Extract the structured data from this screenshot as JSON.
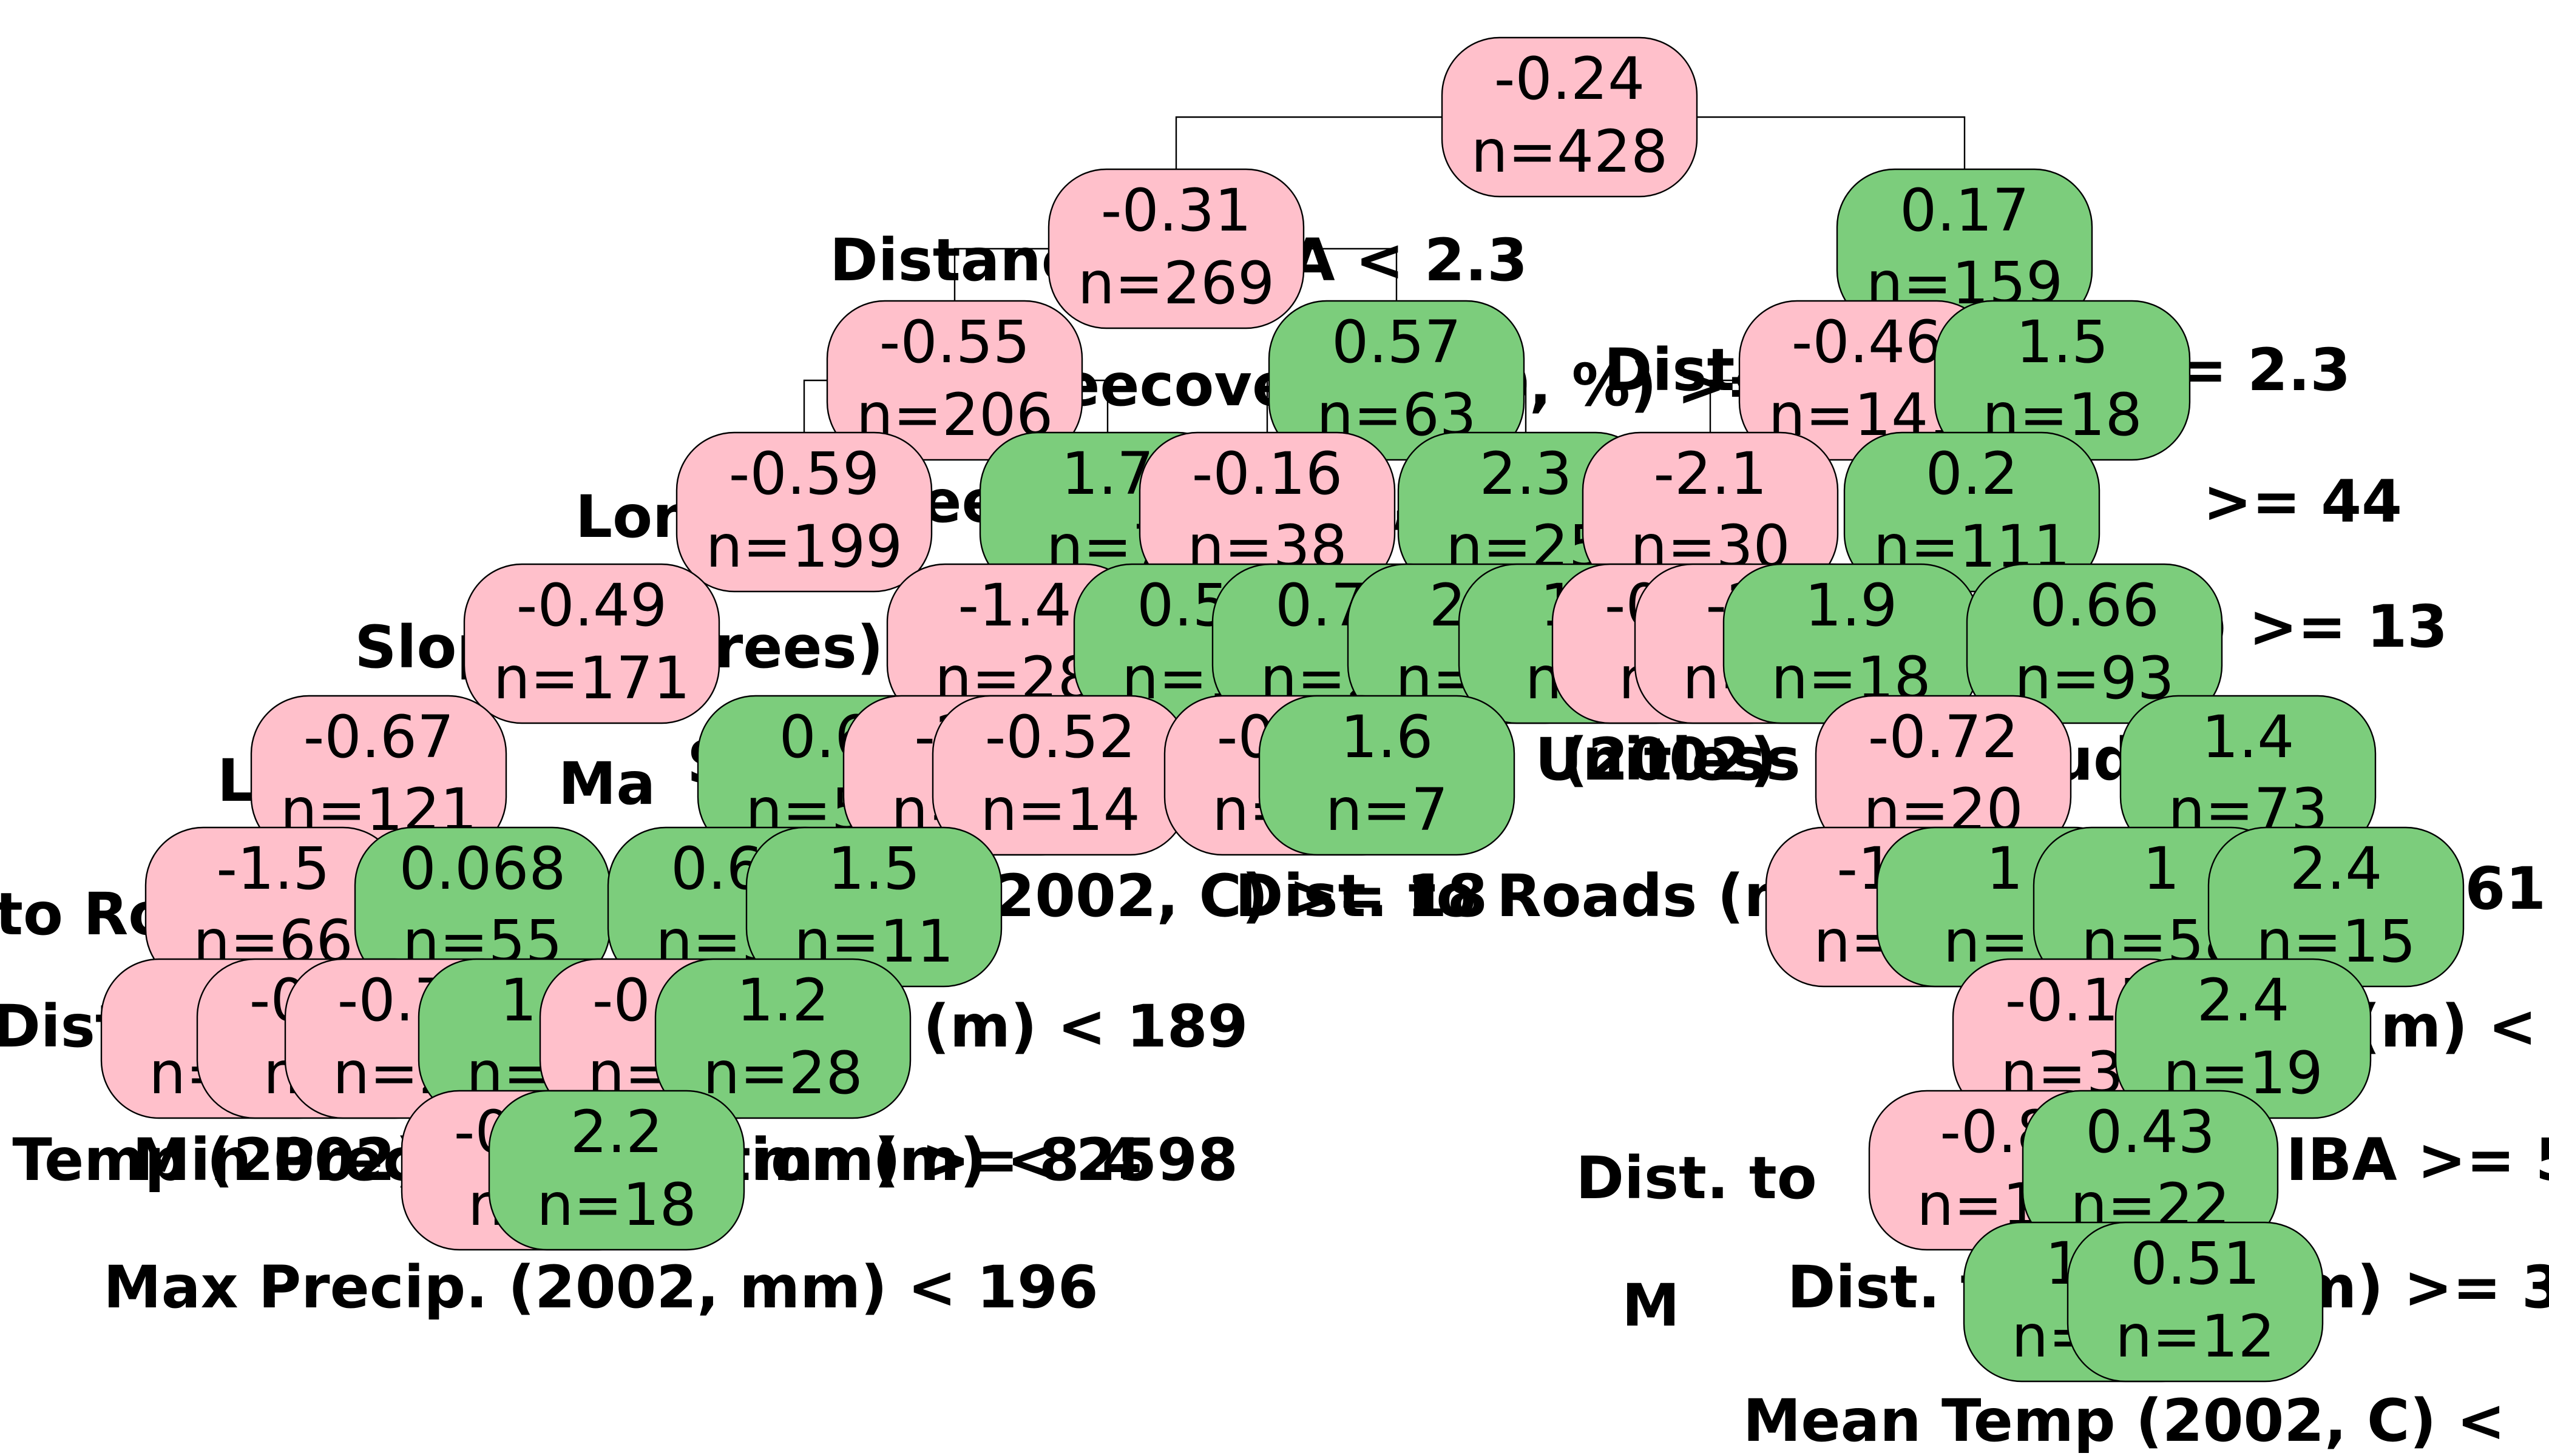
{
  "colors": {
    "negative": "#FFC0CB",
    "positive": "#7CCD7C",
    "edge": "#000000"
  },
  "nodes": [
    {
      "id": "n1",
      "value": "-0.24",
      "n": "n=428",
      "sign": "neg"
    },
    {
      "id": "n2",
      "value": "-0.31",
      "n": "n=269",
      "sign": "neg"
    },
    {
      "id": "n3",
      "value": "0.17",
      "n": "n=159",
      "sign": "pos"
    },
    {
      "id": "n4",
      "value": "-0.55",
      "n": "n=206",
      "sign": "neg"
    },
    {
      "id": "n5",
      "value": "0.57",
      "n": "n=63",
      "sign": "pos"
    },
    {
      "id": "n6",
      "value": "-0.46",
      "n": "n=141",
      "sign": "neg"
    },
    {
      "id": "n7",
      "value": "1.5",
      "n": "n=18",
      "sign": "pos"
    },
    {
      "id": "n8",
      "value": "-0.59",
      "n": "n=199",
      "sign": "neg"
    },
    {
      "id": "n9",
      "value": "1.7",
      "n": "n=7",
      "sign": "pos"
    },
    {
      "id": "n10",
      "value": "-0.16",
      "n": "n=38",
      "sign": "neg"
    },
    {
      "id": "n11",
      "value": "2.3",
      "n": "n=25",
      "sign": "pos"
    },
    {
      "id": "n12",
      "value": "-2.1",
      "n": "n=30",
      "sign": "neg"
    },
    {
      "id": "n13",
      "value": "0.2",
      "n": "n=111",
      "sign": "pos"
    },
    {
      "id": "n14",
      "value": "-0.49",
      "n": "n=171",
      "sign": "neg"
    },
    {
      "id": "n15",
      "value": "-1.4",
      "n": "n=28",
      "sign": "neg"
    },
    {
      "id": "n16",
      "value": "0.53",
      "n": "n=17",
      "sign": "pos"
    },
    {
      "id": "n17",
      "value": "0.73",
      "n": "n=21",
      "sign": "pos"
    },
    {
      "id": "n18",
      "value": "2.7",
      "n": "n=16",
      "sign": "pos"
    },
    {
      "id": "n19",
      "value": "1.8",
      "n": "n=9",
      "sign": "pos"
    },
    {
      "id": "n20",
      "value": "-0.37",
      "n": "n=7",
      "sign": "neg"
    },
    {
      "id": "n21",
      "value": "-2.3",
      "n": "n=23",
      "sign": "neg"
    },
    {
      "id": "n22",
      "value": "1.9",
      "n": "n=18",
      "sign": "pos"
    },
    {
      "id": "n23",
      "value": "0.66",
      "n": "n=93",
      "sign": "pos"
    },
    {
      "id": "n24",
      "value": "-0.67",
      "n": "n=121",
      "sign": "neg"
    },
    {
      "id": "n25",
      "value": "0.6",
      "n": "n=50",
      "sign": "pos"
    },
    {
      "id": "n26",
      "value": "-2.4",
      "n": "n=14",
      "sign": "neg"
    },
    {
      "id": "n27",
      "value": "-0.52",
      "n": "n=14",
      "sign": "neg"
    },
    {
      "id": "n28",
      "value": "-0.71",
      "n": "n=14",
      "sign": "neg"
    },
    {
      "id": "n29",
      "value": "1.6",
      "n": "n=7",
      "sign": "pos"
    },
    {
      "id": "n30",
      "value": "-0.72",
      "n": "n=20",
      "sign": "neg"
    },
    {
      "id": "n31",
      "value": "1.4",
      "n": "n=73",
      "sign": "pos"
    },
    {
      "id": "n32",
      "value": "-1.5",
      "n": "n=66",
      "sign": "neg"
    },
    {
      "id": "n33",
      "value": "0.068",
      "n": "n=55",
      "sign": "pos"
    },
    {
      "id": "n34",
      "value": "0.66",
      "n": "n=39",
      "sign": "pos"
    },
    {
      "id": "n35",
      "value": "1.5",
      "n": "n=11",
      "sign": "pos"
    },
    {
      "id": "n36",
      "value": "-1.2",
      "n": "n=13",
      "sign": "neg"
    },
    {
      "id": "n37",
      "value": "1",
      "n": "n=7",
      "sign": "pos"
    },
    {
      "id": "n38",
      "value": "1",
      "n": "n=58",
      "sign": "pos"
    },
    {
      "id": "n39",
      "value": "2.4",
      "n": "n=15",
      "sign": "pos"
    },
    {
      "id": "n40",
      "value": "-2",
      "n": "n=57",
      "sign": "neg"
    },
    {
      "id": "n41",
      "value": "-0.14",
      "n": "n=9",
      "sign": "neg"
    },
    {
      "id": "n42",
      "value": "-0.71",
      "n": "n=28",
      "sign": "neg"
    },
    {
      "id": "n43",
      "value": "1.2",
      "n": "n=27",
      "sign": "pos"
    },
    {
      "id": "n44",
      "value": "-0.15",
      "n": "n=11",
      "sign": "neg"
    },
    {
      "id": "n45",
      "value": "1.2",
      "n": "n=28",
      "sign": "pos"
    },
    {
      "id": "n46",
      "value": "-0.15",
      "n": "n=39",
      "sign": "neg"
    },
    {
      "id": "n47",
      "value": "2.4",
      "n": "n=19",
      "sign": "pos"
    },
    {
      "id": "n48",
      "value": "-0.16",
      "n": "n=9",
      "sign": "neg"
    },
    {
      "id": "n49",
      "value": "2.2",
      "n": "n=18",
      "sign": "pos"
    },
    {
      "id": "n50",
      "value": "-0.8",
      "n": "n=17",
      "sign": "neg"
    },
    {
      "id": "n51",
      "value": "0.43",
      "n": "n=22",
      "sign": "pos"
    },
    {
      "id": "n52",
      "value": "1.2",
      "n": "n=10",
      "sign": "pos"
    },
    {
      "id": "n53",
      "value": "0.51",
      "n": "n=12",
      "sign": "pos"
    }
  ],
  "edges": [
    [
      "n1",
      "n2"
    ],
    [
      "n1",
      "n3"
    ],
    [
      "n2",
      "n4"
    ],
    [
      "n2",
      "n5"
    ],
    [
      "n3",
      "n6"
    ],
    [
      "n3",
      "n7"
    ],
    [
      "n4",
      "n8"
    ],
    [
      "n4",
      "n9"
    ],
    [
      "n5",
      "n10"
    ],
    [
      "n5",
      "n11"
    ],
    [
      "n6",
      "n12"
    ],
    [
      "n6",
      "n13"
    ]
  ],
  "split_labels": [
    "Distance to IBA < 2.3",
    "Treecover (2000, %) >= 17",
    "Distance to IBA >= 2.3",
    "Treecover (2000, %) < 44",
    "Long",
    ">= 44",
    "Slope (Degrees)",
    "Lon",
    "(2002, mm) >= 13",
    "Long",
    "< -61",
    "Sl",
    "Ma",
    "(2002)",
    "Unitless",
    "Elud",
    "to Roads",
    "Max Temp (2002, C) >= 18",
    "Dist. to Roads (m) < 253",
    "Dist",
    "Elevation (m) < 189",
    "Elevation (m) <",
    "Max Temp (2002)",
    "Min Precip. (2002, mm) >= 8.4",
    "Elevation (m) < 2598",
    "Dist. to",
    "Dist. to IBA >= 5",
    "Max Precip. (2002, mm) < 196",
    "M",
    "Dist. to Roads (m) >= 391",
    "Mean Temp (2002, C) <"
  ]
}
